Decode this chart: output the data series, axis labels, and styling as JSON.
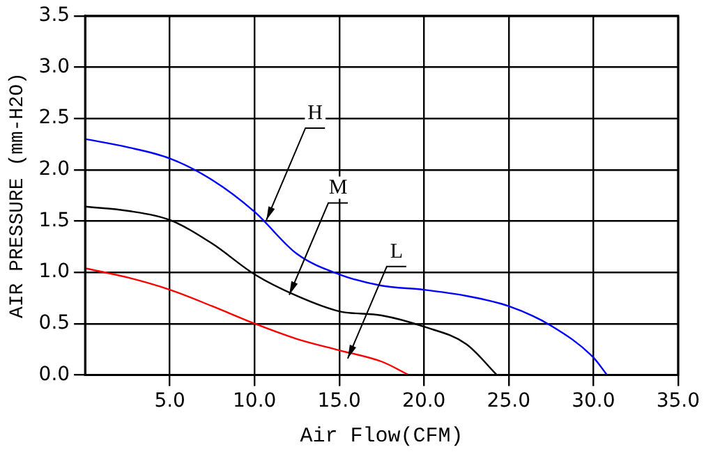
{
  "chart_data": {
    "type": "line",
    "xlabel": "Air Flow(CFM)",
    "ylabel": "AIR PRESSURE (mm-H2O)",
    "xlim": [
      0,
      35
    ],
    "ylim": [
      0,
      3.5
    ],
    "xticks": [
      {
        "value": 5,
        "label": "5.0"
      },
      {
        "value": 10,
        "label": "10.0"
      },
      {
        "value": 15,
        "label": "15.0"
      },
      {
        "value": 20,
        "label": "20.0"
      },
      {
        "value": 25,
        "label": "25.0"
      },
      {
        "value": 30,
        "label": "30.0"
      },
      {
        "value": 35,
        "label": "35.0"
      }
    ],
    "yticks": [
      {
        "value": 0,
        "label": "0.0"
      },
      {
        "value": 0.5,
        "label": "0.5"
      },
      {
        "value": 1,
        "label": "1.0"
      },
      {
        "value": 1.5,
        "label": "1.5"
      },
      {
        "value": 2,
        "label": "2.0"
      },
      {
        "value": 2.5,
        "label": "2.5"
      },
      {
        "value": 3,
        "label": "3.0"
      },
      {
        "value": 3.5,
        "label": "3.5"
      }
    ],
    "grid": true,
    "marker": "none",
    "line_style": "solid",
    "series": [
      {
        "color": "#0000ff",
        "x": [
          0,
          2.5,
          5,
          7.5,
          10,
          12.5,
          15,
          17.5,
          20,
          22.5,
          25,
          27.5,
          30,
          30.8
        ],
        "values": [
          2.3,
          2.22,
          2.11,
          1.9,
          1.59,
          1.18,
          0.98,
          0.87,
          0.83,
          0.77,
          0.67,
          0.48,
          0.17,
          0
        ]
      },
      {
        "color": "#000000",
        "x": [
          0,
          2.5,
          5,
          7.5,
          10,
          12.5,
          15,
          17.5,
          20,
          22.5,
          24.3
        ],
        "values": [
          1.64,
          1.6,
          1.51,
          1.28,
          0.98,
          0.77,
          0.62,
          0.58,
          0.47,
          0.3,
          0
        ]
      },
      {
        "color": "#ff0000",
        "x": [
          0,
          2.5,
          5,
          7.5,
          10,
          12.5,
          15,
          17.5,
          19.1
        ],
        "values": [
          1.04,
          0.95,
          0.83,
          0.67,
          0.5,
          0.35,
          0.24,
          0.13,
          0
        ]
      }
    ],
    "annotations": [
      {
        "text": "H",
        "x": 10.7,
        "y": 1.51
      },
      {
        "text": "M",
        "x": 12.05,
        "y": 0.78
      },
      {
        "text": "L",
        "x": 15.5,
        "y": 0.16
      }
    ]
  }
}
